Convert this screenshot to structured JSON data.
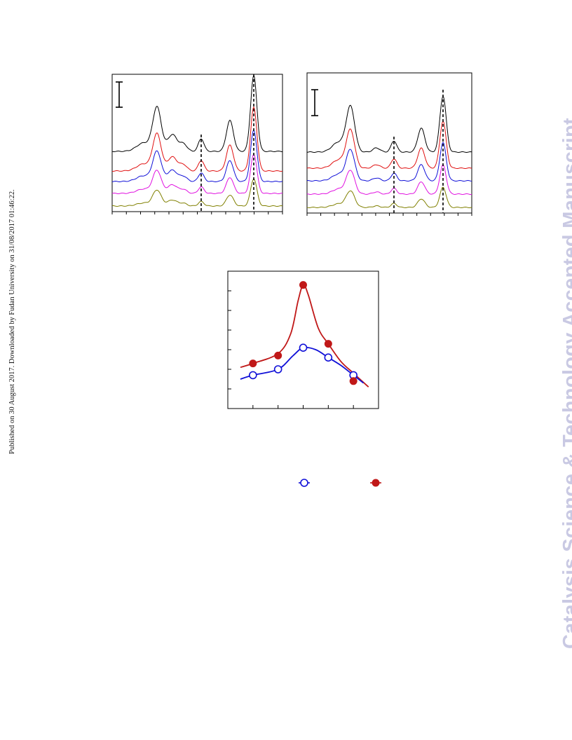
{
  "side_note": "Published on 30 August 2017. Downloaded by Fudan University on 31/08/2017 01:46:22.",
  "watermark": "Catalysis Science & Technology Accepted Manuscript",
  "colors": {
    "black": "#000000",
    "red": "#e01010",
    "blue": "#1010d8",
    "magenta": "#e010e0",
    "olive": "#808000",
    "series_open": "#1010d8",
    "series_filled": "#c01818"
  },
  "chart_data": [
    {
      "type": "line",
      "panel": "left-spectra",
      "traces": [
        "black",
        "red",
        "blue",
        "magenta",
        "olive"
      ],
      "reference_lines": 2,
      "scale_bar": true
    },
    {
      "type": "line",
      "panel": "right-spectra",
      "traces": [
        "black",
        "red",
        "blue",
        "magenta",
        "olive"
      ],
      "reference_lines": 2,
      "scale_bar": true
    },
    {
      "type": "scatter",
      "panel": "bottom",
      "x": [
        1,
        2,
        3,
        4,
        5
      ],
      "series": [
        {
          "marker": "open-circle",
          "color": "#1010d8",
          "values": [
            1.2,
            1.5,
            2.6,
            2.1,
            1.2
          ]
        },
        {
          "marker": "filled-circle",
          "color": "#c01818",
          "values": [
            1.8,
            2.2,
            5.8,
            2.8,
            0.9
          ]
        }
      ],
      "ylim": [
        -0.5,
        6.5
      ],
      "legend": "bottom"
    }
  ]
}
